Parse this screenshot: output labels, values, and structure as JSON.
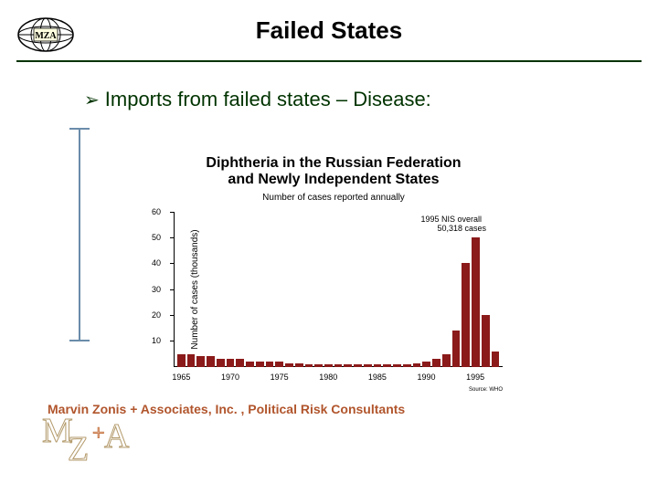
{
  "header": {
    "title": "Failed States",
    "logo_label": "MZA"
  },
  "bullet": {
    "text": "Imports from failed states – Disease:"
  },
  "chart": {
    "type": "bar",
    "title_line1": "Diphtheria in the Russian Federation",
    "title_line2": "and Newly Independent States",
    "subtitle": "Number of cases reported annually",
    "ylabel": "Number of cases (thousands)",
    "ylim_max": 60,
    "yticks": [
      10,
      20,
      30,
      40,
      50,
      60
    ],
    "years": [
      1965,
      1966,
      1967,
      1968,
      1969,
      1970,
      1971,
      1972,
      1973,
      1974,
      1975,
      1976,
      1977,
      1978,
      1979,
      1980,
      1981,
      1982,
      1983,
      1984,
      1985,
      1986,
      1987,
      1988,
      1989,
      1990,
      1991,
      1992,
      1993,
      1994,
      1995,
      1996,
      1997
    ],
    "values": [
      5,
      5,
      4,
      4,
      3,
      3,
      3,
      2,
      2,
      2,
      2,
      1.5,
      1.5,
      1,
      1,
      1,
      1,
      1,
      1,
      1,
      1,
      1,
      1,
      1,
      1.5,
      2,
      3,
      5,
      14,
      40,
      50,
      20,
      6
    ],
    "xtick_years": [
      1965,
      1970,
      1975,
      1980,
      1985,
      1990,
      1995
    ],
    "bar_color": "#8b1a1a",
    "annot_line1": "1995 NIS overall",
    "annot_line2": "50,318 cases",
    "source": "Source: WHO",
    "title_fontsize": 16,
    "subtitle_fontsize": 10,
    "axis_fontsize": 9,
    "background_color": "#ffffff",
    "axis_color": "#000000"
  },
  "footer": {
    "text": "Marvin Zonis + Associates, Inc. , Political Risk Consultants",
    "logo_letters": [
      "M",
      "Z",
      "A"
    ],
    "logo_plus": "+",
    "logo_color": "#b39a6b"
  },
  "colors": {
    "rule": "#003300",
    "bullet_text": "#003300",
    "footer_text": "#b1552c",
    "side_line": "#6a8caa"
  }
}
